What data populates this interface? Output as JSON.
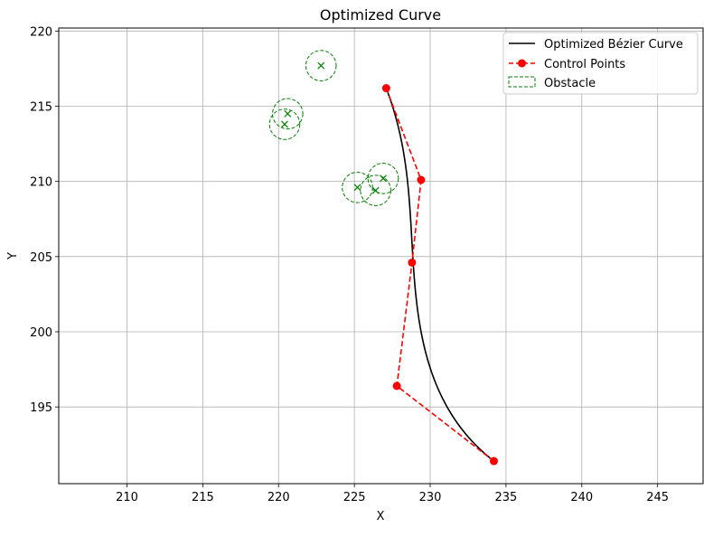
{
  "chart_data": {
    "type": "line",
    "title": "Optimized Curve",
    "xlabel": "X",
    "ylabel": "Y",
    "xlim": [
      205.5,
      248.0
    ],
    "ylim": [
      189.9,
      220.2
    ],
    "xticks": [
      210,
      215,
      220,
      225,
      230,
      235,
      240,
      245
    ],
    "yticks": [
      195,
      200,
      205,
      210,
      215,
      220
    ],
    "grid": true,
    "legend_position": "top-right",
    "series": [
      {
        "name": "Optimized Bézier Curve",
        "kind": "bezier",
        "color": "#000000"
      },
      {
        "name": "Control Points",
        "kind": "control_points",
        "color": "#ff0000",
        "points": [
          [
            227.1,
            216.2
          ],
          [
            229.4,
            210.1
          ],
          [
            228.8,
            204.6
          ],
          [
            227.8,
            196.4
          ],
          [
            234.2,
            191.4
          ]
        ]
      },
      {
        "name": "Obstacle",
        "kind": "obstacles",
        "color": "#008000",
        "radius": 1.0,
        "centers": [
          [
            222.8,
            217.7
          ],
          [
            220.6,
            214.5
          ],
          [
            220.4,
            213.8
          ],
          [
            225.2,
            209.6
          ],
          [
            226.4,
            209.4
          ],
          [
            226.9,
            210.2
          ]
        ]
      }
    ]
  }
}
